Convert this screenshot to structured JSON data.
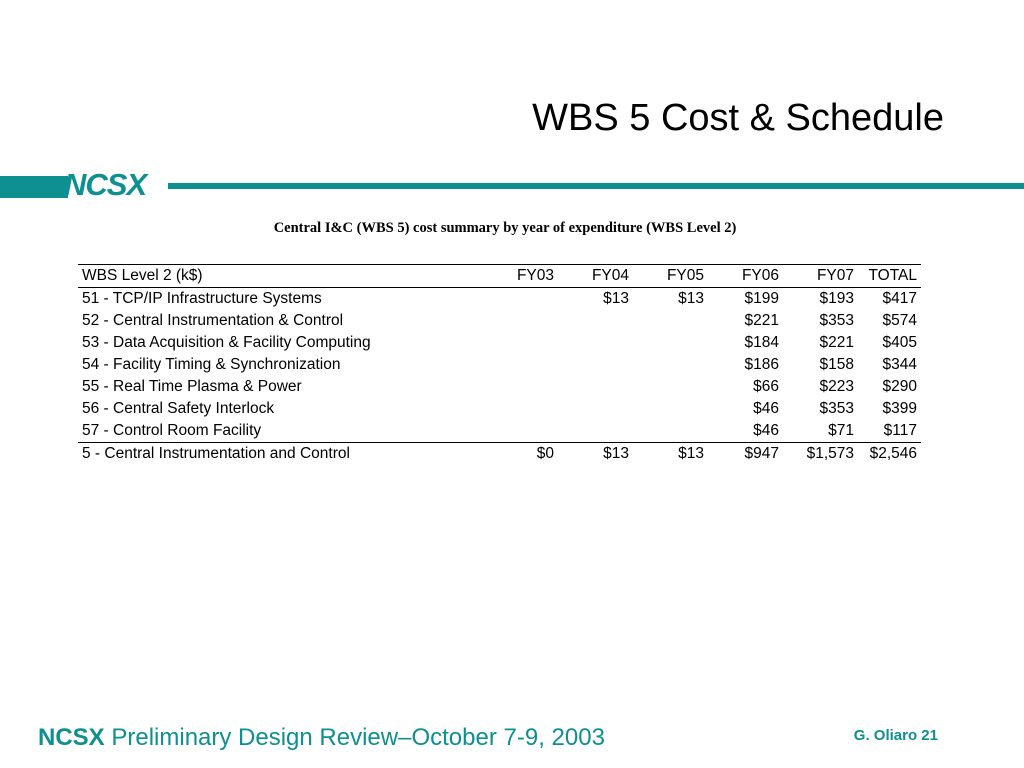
{
  "slide": {
    "title": "WBS 5 Cost & Schedule",
    "logo": "NCSX",
    "caption": "Central I&C (WBS 5) cost summary by year of expenditure (WBS Level 2)"
  },
  "table": {
    "headers": [
      "WBS Level 2 (k$)",
      "FY03",
      "FY04",
      "FY05",
      "FY06",
      "FY07",
      "TOTAL"
    ],
    "rows": [
      [
        "51 - TCP/IP Infrastructure Systems",
        "",
        "$13",
        "$13",
        "$199",
        "$193",
        "$417"
      ],
      [
        "52 - Central Instrumentation & Control",
        "",
        "",
        "",
        "$221",
        "$353",
        "$574"
      ],
      [
        "53 - Data Acquisition & Facility Computing",
        "",
        "",
        "",
        "$184",
        "$221",
        "$405"
      ],
      [
        "54 - Facility Timing & Synchronization",
        "",
        "",
        "",
        "$186",
        "$158",
        "$344"
      ],
      [
        "55 - Real Time Plasma & Power",
        "",
        "",
        "",
        "$66",
        "$223",
        "$290"
      ],
      [
        "56 - Central Safety Interlock",
        "",
        "",
        "",
        "$46",
        "$353",
        "$399"
      ],
      [
        "57 - Control Room Facility",
        "",
        "",
        "",
        "$46",
        "$71",
        "$117"
      ]
    ],
    "total": [
      "5 - Central Instrumentation and Control",
      "$0",
      "$13",
      "$13",
      "$947",
      "$1,573",
      "$2,546"
    ]
  },
  "footer": {
    "brand": "NCSX",
    "text": " Preliminary Design Review–October 7-9, 2003",
    "author": "G. Oliaro 21"
  },
  "colors": {
    "accent": "#0e8f90"
  }
}
